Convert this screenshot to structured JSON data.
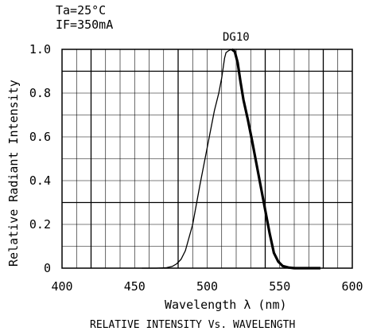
{
  "conditions": [
    "Ta=25°C",
    "IF=350mA"
  ],
  "chart_data": {
    "type": "line",
    "xlabel": "Wavelength λ (nm)",
    "ylabel": "Relative Radiant Intensity",
    "caption": "RELATIVE INTENSITY Vs. WAVELENGTH",
    "xlim": [
      400,
      600
    ],
    "ylim": [
      0,
      1.0
    ],
    "x_ticks": [
      400,
      450,
      500,
      550,
      600
    ],
    "x_tick_labels": [
      "400",
      "450",
      "500",
      "550",
      "600"
    ],
    "y_ticks": [
      0,
      0.2,
      0.4,
      0.6,
      0.8,
      1.0
    ],
    "y_tick_labels": [
      "0",
      "0.2",
      "0.4",
      "0.6",
      "0.8",
      "1.0"
    ],
    "grid": true,
    "series": [
      {
        "name": "DG10",
        "points": [
          [
            455,
            0.0
          ],
          [
            465,
            0.0
          ],
          [
            472,
            0.002
          ],
          [
            476,
            0.008
          ],
          [
            479,
            0.02
          ],
          [
            482,
            0.04
          ],
          [
            485,
            0.08
          ],
          [
            490,
            0.2
          ],
          [
            495,
            0.38
          ],
          [
            500,
            0.55
          ],
          [
            505,
            0.72
          ],
          [
            508,
            0.8
          ],
          [
            510,
            0.87
          ],
          [
            512,
            0.96
          ],
          [
            513,
            0.985
          ],
          [
            515,
            0.995
          ],
          [
            517,
            1.0
          ],
          [
            519,
            0.99
          ],
          [
            521,
            0.94
          ],
          [
            523,
            0.85
          ],
          [
            525,
            0.77
          ],
          [
            528,
            0.68
          ],
          [
            531,
            0.58
          ],
          [
            535,
            0.44
          ],
          [
            539,
            0.3
          ],
          [
            543,
            0.16
          ],
          [
            546,
            0.07
          ],
          [
            549,
            0.03
          ],
          [
            552,
            0.01
          ],
          [
            556,
            0.003
          ],
          [
            560,
            0.0
          ],
          [
            570,
            0.0
          ],
          [
            578,
            0.0
          ]
        ]
      }
    ]
  }
}
